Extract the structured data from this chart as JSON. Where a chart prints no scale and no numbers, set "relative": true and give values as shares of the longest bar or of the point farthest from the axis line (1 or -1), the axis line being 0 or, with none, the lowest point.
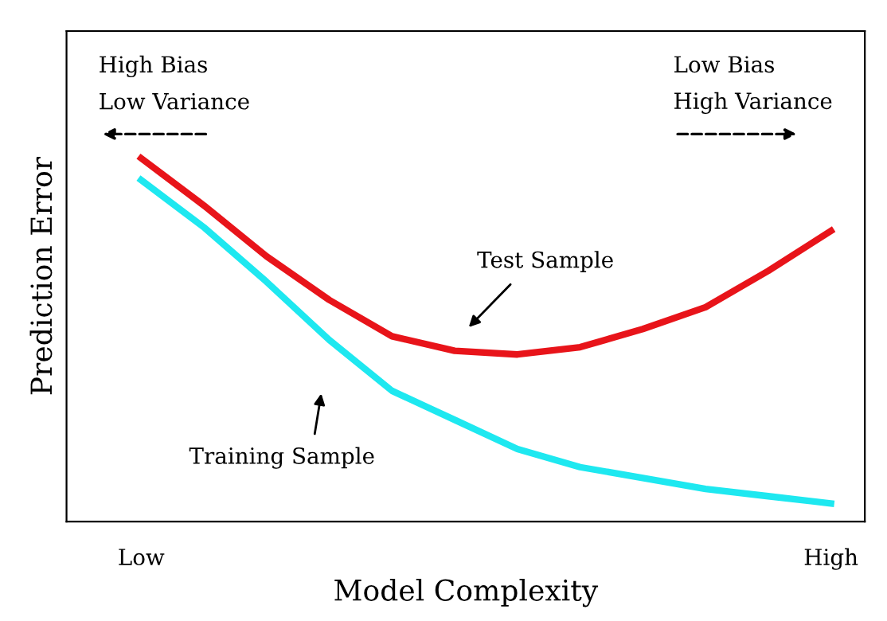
{
  "chart_data": {
    "type": "line",
    "relative": true,
    "xlabel": "Model Complexity",
    "ylabel": "Prediction Error",
    "categories": [
      "Low",
      null,
      null,
      null,
      null,
      null,
      null,
      null,
      null,
      null,
      null,
      "High"
    ],
    "series": [
      {
        "color": "#e8141a",
        "values": [
          1,
          0.87,
          0.73,
          0.61,
          0.51,
          0.47,
          0.46,
          0.48,
          0.53,
          0.59,
          0.69,
          0.8
        ]
      },
      {
        "color": "#1ee8f0",
        "values": [
          0.94,
          0.81,
          0.66,
          0.5,
          0.36,
          0.28,
          0.2,
          0.15,
          0.12,
          0.09,
          0.07,
          0.05
        ]
      }
    ],
    "annotations": [
      "High Bias\nLow Variance",
      "Low Bias\nHigh Variance",
      "Test Sample",
      "Training Sample"
    ],
    "grid": false,
    "legend": false,
    "marker": "none",
    "line_style": "solid"
  }
}
